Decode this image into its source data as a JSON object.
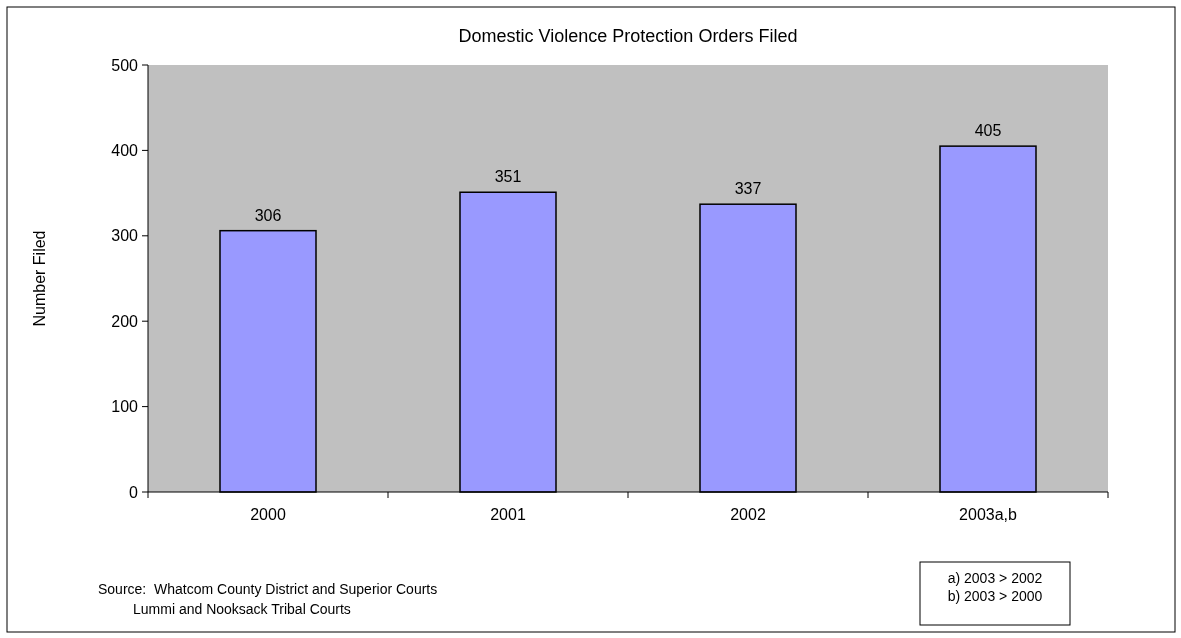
{
  "chart_data": {
    "type": "bar",
    "title": "Domestic Violence Protection Orders Filed",
    "ylabel": "Number Filed",
    "categories": [
      "2000",
      "2001",
      "2002",
      "2003a,b"
    ],
    "values": [
      306,
      351,
      337,
      405
    ],
    "color": "#9999ff",
    "ylim": [
      0,
      500
    ],
    "yticks": [
      0,
      100,
      200,
      300,
      400,
      500
    ],
    "grid": false,
    "data_labels": true,
    "annotations": [
      "Source:  Whatcom County District and Superior Courts\n         Lummi and Nooksack Tribal Courts",
      "a) 2003 > 2002\nb) 2003 > 2000"
    ]
  }
}
